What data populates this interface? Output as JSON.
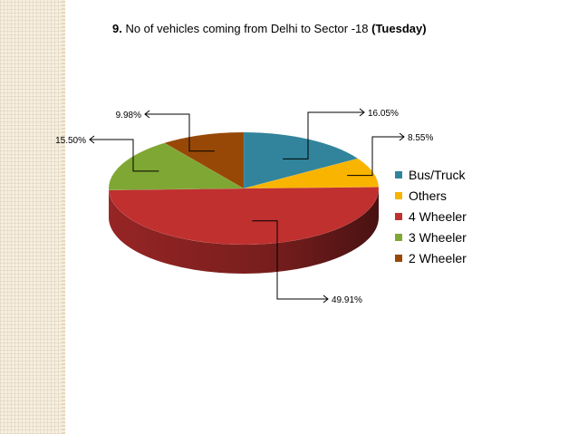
{
  "title": {
    "number": "9.",
    "text": " No of vehicles coming from Delhi to Sector -18 ",
    "suffix": "(Tuesday)"
  },
  "chart_data": {
    "type": "pie",
    "title": "9. No of vehicles coming from Delhi to Sector -18 (Tuesday)",
    "three_d": true,
    "legend_position": "right",
    "labels": [
      "Bus/Truck",
      "Others",
      "4 Wheeler",
      "3 Wheeler",
      "2 Wheeler"
    ],
    "values": [
      16.05,
      8.55,
      49.91,
      15.5,
      9.98
    ],
    "value_labels": [
      "16.05%",
      "8.55%",
      "49.91%",
      "15.50%",
      "9.98%"
    ],
    "colors": [
      "#31849b",
      "#f9b400",
      "#c0302f",
      "#7fa734",
      "#974806"
    ]
  }
}
